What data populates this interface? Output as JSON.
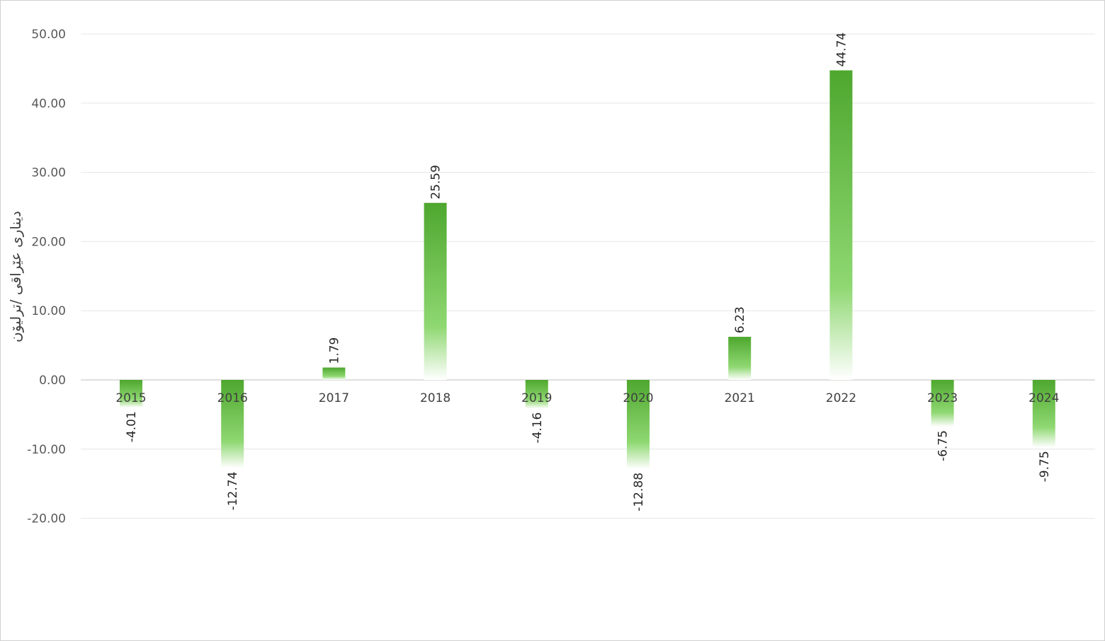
{
  "chart_data": {
    "type": "bar",
    "title": "",
    "xlabel": "",
    "ylabel": "دیناری عێراقی /ترلیۆن",
    "categories": [
      "2015",
      "2016",
      "2017",
      "2018",
      "2019",
      "2020",
      "2021",
      "2022",
      "2023",
      "2024"
    ],
    "values": [
      -4.01,
      -12.74,
      1.79,
      25.59,
      -4.16,
      -12.88,
      6.23,
      44.74,
      -6.75,
      -9.75
    ],
    "ylim": [
      -20,
      50
    ],
    "yticks": [
      50,
      40,
      30,
      20,
      10,
      0,
      -10,
      -20
    ],
    "grid": true,
    "bar_color": "#4ea72e"
  }
}
